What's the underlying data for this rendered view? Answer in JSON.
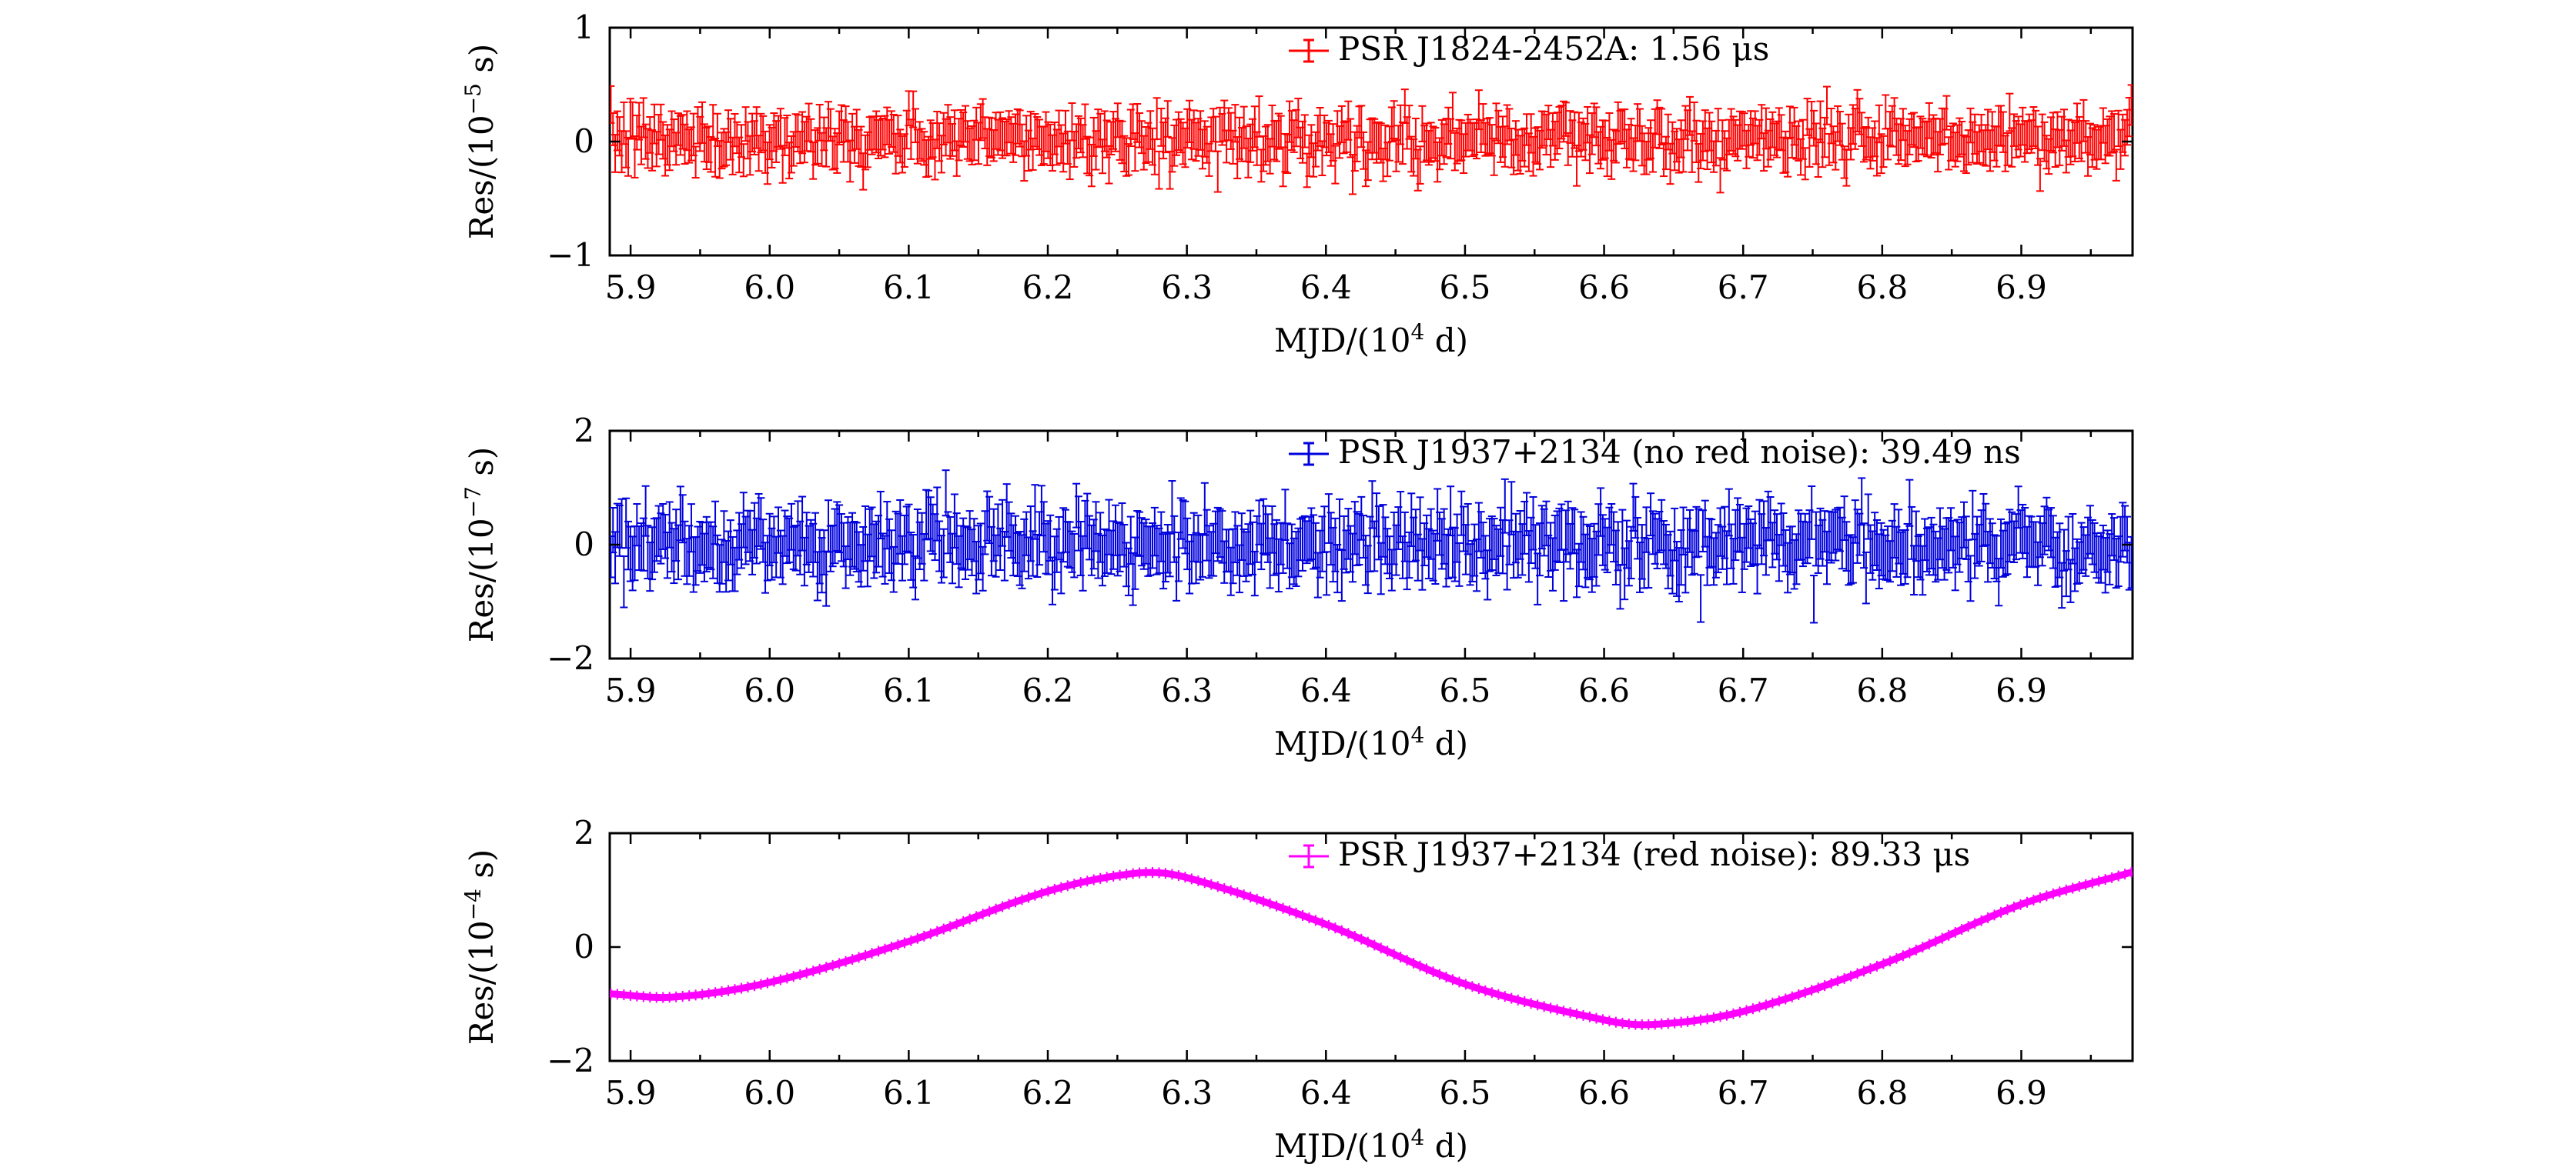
{
  "chart_data": [
    {
      "type": "scatter",
      "style": "errorbar",
      "title": "",
      "xlabel_main": "MJD/(10",
      "xlabel_exp": "4",
      "xlabel_tail": " d)",
      "ylabel_main": "Res/(10",
      "ylabel_exp": "−5",
      "ylabel_tail": " s)",
      "xlim": [
        5.885,
        6.98
      ],
      "ylim": [
        -1,
        1
      ],
      "xticks": [
        "5.9",
        "6.0",
        "6.1",
        "6.2",
        "6.3",
        "6.4",
        "6.5",
        "6.6",
        "6.7",
        "6.8",
        "6.9"
      ],
      "yticks": [
        "−1",
        "0",
        "1"
      ],
      "color": "#ff0000",
      "legend": "PSR J1824-2452A: 1.56 μs",
      "legend_position": "top-right",
      "series": [
        {
          "name": "PSR J1824-2452A: 1.56 μs",
          "model": "white-noise",
          "n_points": 700,
          "center": 0.02,
          "scatter_sd": 0.11,
          "error_bar_half": 0.16
        }
      ]
    },
    {
      "type": "scatter",
      "style": "errorbar",
      "title": "",
      "xlabel_main": "MJD/(10",
      "xlabel_exp": "4",
      "xlabel_tail": " d)",
      "ylabel_main": "Res/(10",
      "ylabel_exp": "−7",
      "ylabel_tail": " s)",
      "xlim": [
        5.885,
        6.98
      ],
      "ylim": [
        -2,
        2
      ],
      "xticks": [
        "5.9",
        "6.0",
        "6.1",
        "6.2",
        "6.3",
        "6.4",
        "6.5",
        "6.6",
        "6.7",
        "6.8",
        "6.9"
      ],
      "yticks": [
        "−2",
        "0",
        "2"
      ],
      "color": "#0000dd",
      "legend": "PSR J1937+2134 (no red noise): 39.49 ns",
      "legend_position": "top-right",
      "series": [
        {
          "name": "PSR J1937+2134 (no red noise): 39.49 ns",
          "model": "white-noise",
          "n_points": 700,
          "center": 0.0,
          "scatter_sd": 0.28,
          "error_bar_half": 0.42
        }
      ]
    },
    {
      "type": "line",
      "style": "errorbar",
      "title": "",
      "xlabel_main": "MJD/(10",
      "xlabel_exp": "4",
      "xlabel_tail": " d)",
      "ylabel_main": "Res/(10",
      "ylabel_exp": "−4",
      "ylabel_tail": " s)",
      "xlim": [
        5.885,
        6.98
      ],
      "ylim": [
        -2,
        2
      ],
      "xticks": [
        "5.9",
        "6.0",
        "6.1",
        "6.2",
        "6.3",
        "6.4",
        "6.5",
        "6.6",
        "6.7",
        "6.8",
        "6.9"
      ],
      "yticks": [
        "−2",
        "0",
        "2"
      ],
      "color": "#ff00ff",
      "legend": "PSR J1937+2134 (red noise): 89.33 μs",
      "legend_position": "top-right",
      "series": [
        {
          "name": "PSR J1937+2134 (red noise): 89.33 μs",
          "x": [
            5.885,
            5.93,
            6.0,
            6.1,
            6.2,
            6.265,
            6.3,
            6.4,
            6.5,
            6.6,
            6.635,
            6.7,
            6.8,
            6.9,
            6.98
          ],
          "y": [
            -0.82,
            -0.88,
            -0.62,
            0.1,
            0.98,
            1.3,
            1.22,
            0.4,
            -0.65,
            -1.28,
            -1.36,
            -1.13,
            -0.3,
            0.75,
            1.32
          ]
        }
      ]
    }
  ]
}
